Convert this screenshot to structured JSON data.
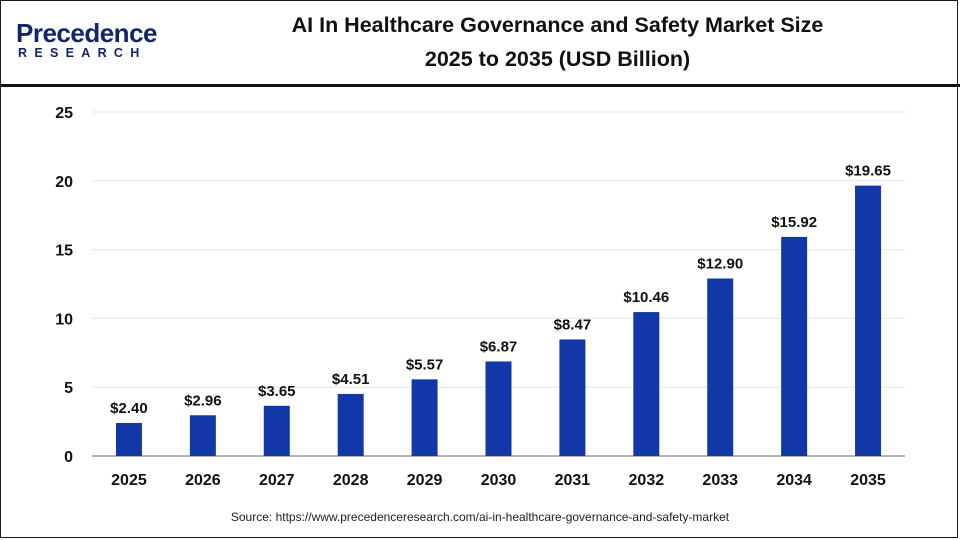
{
  "header": {
    "logo_word": "Precedence",
    "logo_sub": "RESEARCH",
    "title_line1": "AI In Healthcare Governance and Safety Market Size",
    "title_line2": "2025 to 2035 (USD Billion)"
  },
  "source": "Source: https://www.precedenceresearch.com/ai-in-healthcare-governance-and-safety-market",
  "colors": {
    "bar": "#1238a8",
    "brand": "#10256b",
    "grid": "#e6e6e6",
    "axis": "#888888"
  },
  "chart_data": {
    "type": "bar",
    "title": "AI In Healthcare Governance and Safety Market Size 2025 to 2035 (USD Billion)",
    "xlabel": "",
    "ylabel": "",
    "categories": [
      "2025",
      "2026",
      "2027",
      "2028",
      "2029",
      "2030",
      "2031",
      "2032",
      "2033",
      "2034",
      "2035"
    ],
    "values": [
      2.4,
      2.96,
      3.65,
      4.51,
      5.57,
      6.87,
      8.47,
      10.46,
      12.9,
      15.92,
      19.65
    ],
    "labels": [
      "$2.40",
      "$2.96",
      "$3.65",
      "$4.51",
      "$5.57",
      "$6.87",
      "$8.47",
      "$10.46",
      "$12.90",
      "$15.92",
      "$19.65"
    ],
    "ylim": [
      0,
      25
    ],
    "yticks": [
      0,
      5,
      10,
      15,
      20,
      25
    ],
    "grid": true,
    "legend": "none"
  }
}
